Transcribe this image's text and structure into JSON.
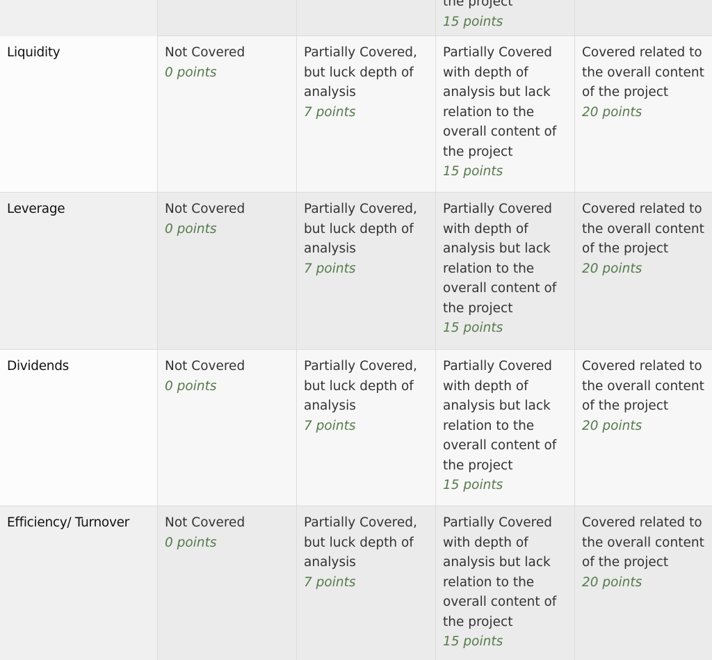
{
  "partial_row": {
    "description_tail": "the project",
    "points": "15 points"
  },
  "rows": [
    {
      "criterion": "Liquidity",
      "cells": [
        {
          "description": "Not Covered",
          "points": "0 points"
        },
        {
          "description": "Partially Covered, but luck depth of analysis",
          "points": "7 points"
        },
        {
          "description": "Partially Covered with depth of analysis but lack relation to the overall content of the project",
          "points": "15 points"
        },
        {
          "description": "Covered related to the overall content of the project",
          "points": "20 points"
        }
      ]
    },
    {
      "criterion": "Leverage",
      "cells": [
        {
          "description": "Not Covered",
          "points": "0 points"
        },
        {
          "description": "Partially Covered, but luck depth of analysis",
          "points": "7 points"
        },
        {
          "description": "Partially Covered with depth of analysis but lack relation to the overall content of the project",
          "points": "15 points"
        },
        {
          "description": "Covered related to the overall content of the project",
          "points": "20 points"
        }
      ]
    },
    {
      "criterion": "Dividends",
      "cells": [
        {
          "description": "Not Covered",
          "points": "0 points"
        },
        {
          "description": "Partially Covered, but luck depth of analysis",
          "points": "7 points"
        },
        {
          "description": "Partially Covered with depth of analysis but lack relation to the overall content of the project",
          "points": "15 points"
        },
        {
          "description": "Covered related to the overall content of the project",
          "points": "20 points"
        }
      ]
    },
    {
      "criterion": "Efficiency/ Turnover",
      "cells": [
        {
          "description": "Not Covered",
          "points": "0 points"
        },
        {
          "description": "Partially Covered, but luck depth of analysis",
          "points": "7 points"
        },
        {
          "description": "Partially Covered with depth of analysis but lack relation to the overall content of the project",
          "points": "15 points"
        },
        {
          "description": "Covered related to the overall content of the project",
          "points": "20 points"
        }
      ]
    }
  ]
}
